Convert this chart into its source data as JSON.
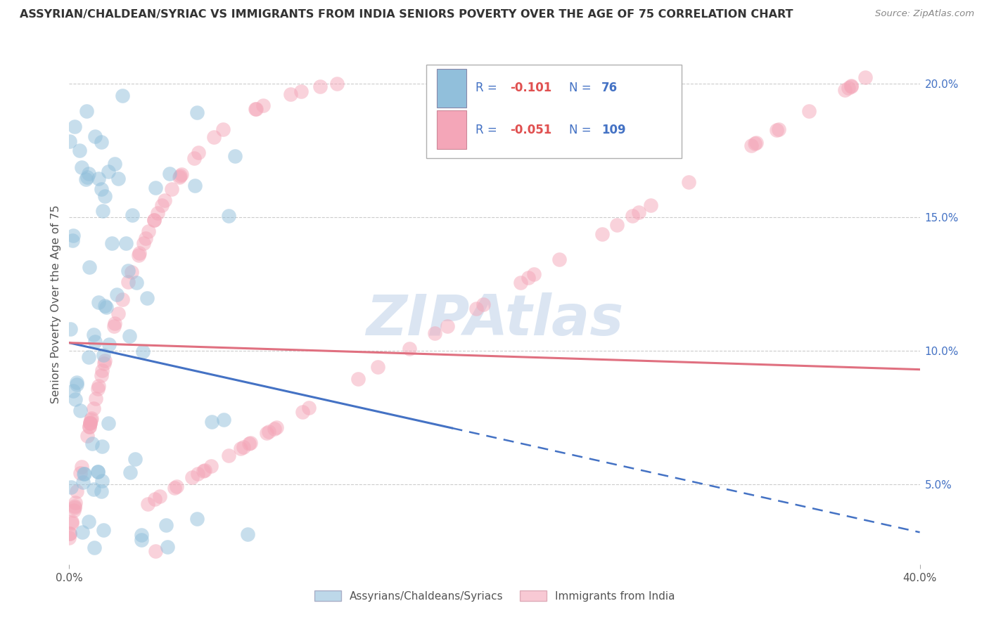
{
  "title": "ASSYRIAN/CHALDEAN/SYRIAC VS IMMIGRANTS FROM INDIA SENIORS POVERTY OVER THE AGE OF 75 CORRELATION CHART",
  "source": "Source: ZipAtlas.com",
  "ylabel": "Seniors Poverty Over the Age of 75",
  "xlim": [
    0.0,
    0.4
  ],
  "ylim": [
    0.02,
    0.215
  ],
  "xtick_positions": [
    0.0,
    0.4
  ],
  "xtick_labels": [
    "0.0%",
    "40.0%"
  ],
  "ytick_positions": [
    0.05,
    0.1,
    0.15,
    0.2
  ],
  "ytick_labels": [
    "5.0%",
    "10.0%",
    "15.0%",
    "20.0%"
  ],
  "watermark": "ZIPAtlas",
  "watermark_color": "#c8d8ec",
  "background_color": "#ffffff",
  "grid_color": "#cccccc",
  "blue_color": "#91bfdb",
  "pink_color": "#f4a6b8",
  "blue_line_color": "#4472c4",
  "pink_line_color": "#e07080",
  "title_color": "#333333",
  "source_color": "#888888",
  "legend_text_color": "#4472c4",
  "legend_R_color": "#e05050",
  "blue_line_solid_end": 0.18,
  "blue_line_start_y": 0.103,
  "blue_line_end_y": 0.032,
  "pink_line_start_y": 0.103,
  "pink_line_end_y": 0.093,
  "n_blue": 76,
  "n_pink": 109,
  "R_blue": -0.101,
  "R_pink": -0.051,
  "label_blue": "Assyrians/Chaldeans/Syriacs",
  "label_pink": "Immigrants from India"
}
